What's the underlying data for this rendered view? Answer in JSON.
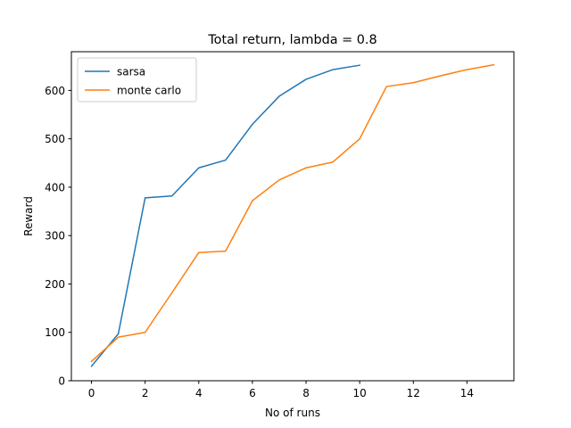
{
  "chart_data": {
    "type": "line",
    "title": "Total return, lambda = 0.8",
    "xlabel": "No of runs",
    "ylabel": "Reward",
    "xlim": [
      -0.75,
      15.75
    ],
    "ylim": [
      0,
      680
    ],
    "xticks": [
      0,
      2,
      4,
      6,
      8,
      10,
      12,
      14
    ],
    "yticks": [
      0,
      100,
      200,
      300,
      400,
      500,
      600
    ],
    "grid": false,
    "legend_position": "top-left",
    "series": [
      {
        "name": "sarsa",
        "color": "#1f77b4",
        "x": [
          0,
          1,
          2,
          3,
          4,
          5,
          6,
          7,
          8,
          9,
          10
        ],
        "y": [
          30,
          97,
          378,
          382,
          440,
          456,
          530,
          588,
          623,
          643,
          652
        ]
      },
      {
        "name": "monte carlo",
        "color": "#ff7f0e",
        "x": [
          0,
          1,
          2,
          3,
          4,
          5,
          6,
          7,
          8,
          9,
          10,
          11,
          12,
          13,
          14,
          15
        ],
        "y": [
          40,
          90,
          100,
          182,
          265,
          268,
          372,
          415,
          440,
          452,
          500,
          608,
          616,
          630,
          643,
          653
        ]
      }
    ]
  }
}
